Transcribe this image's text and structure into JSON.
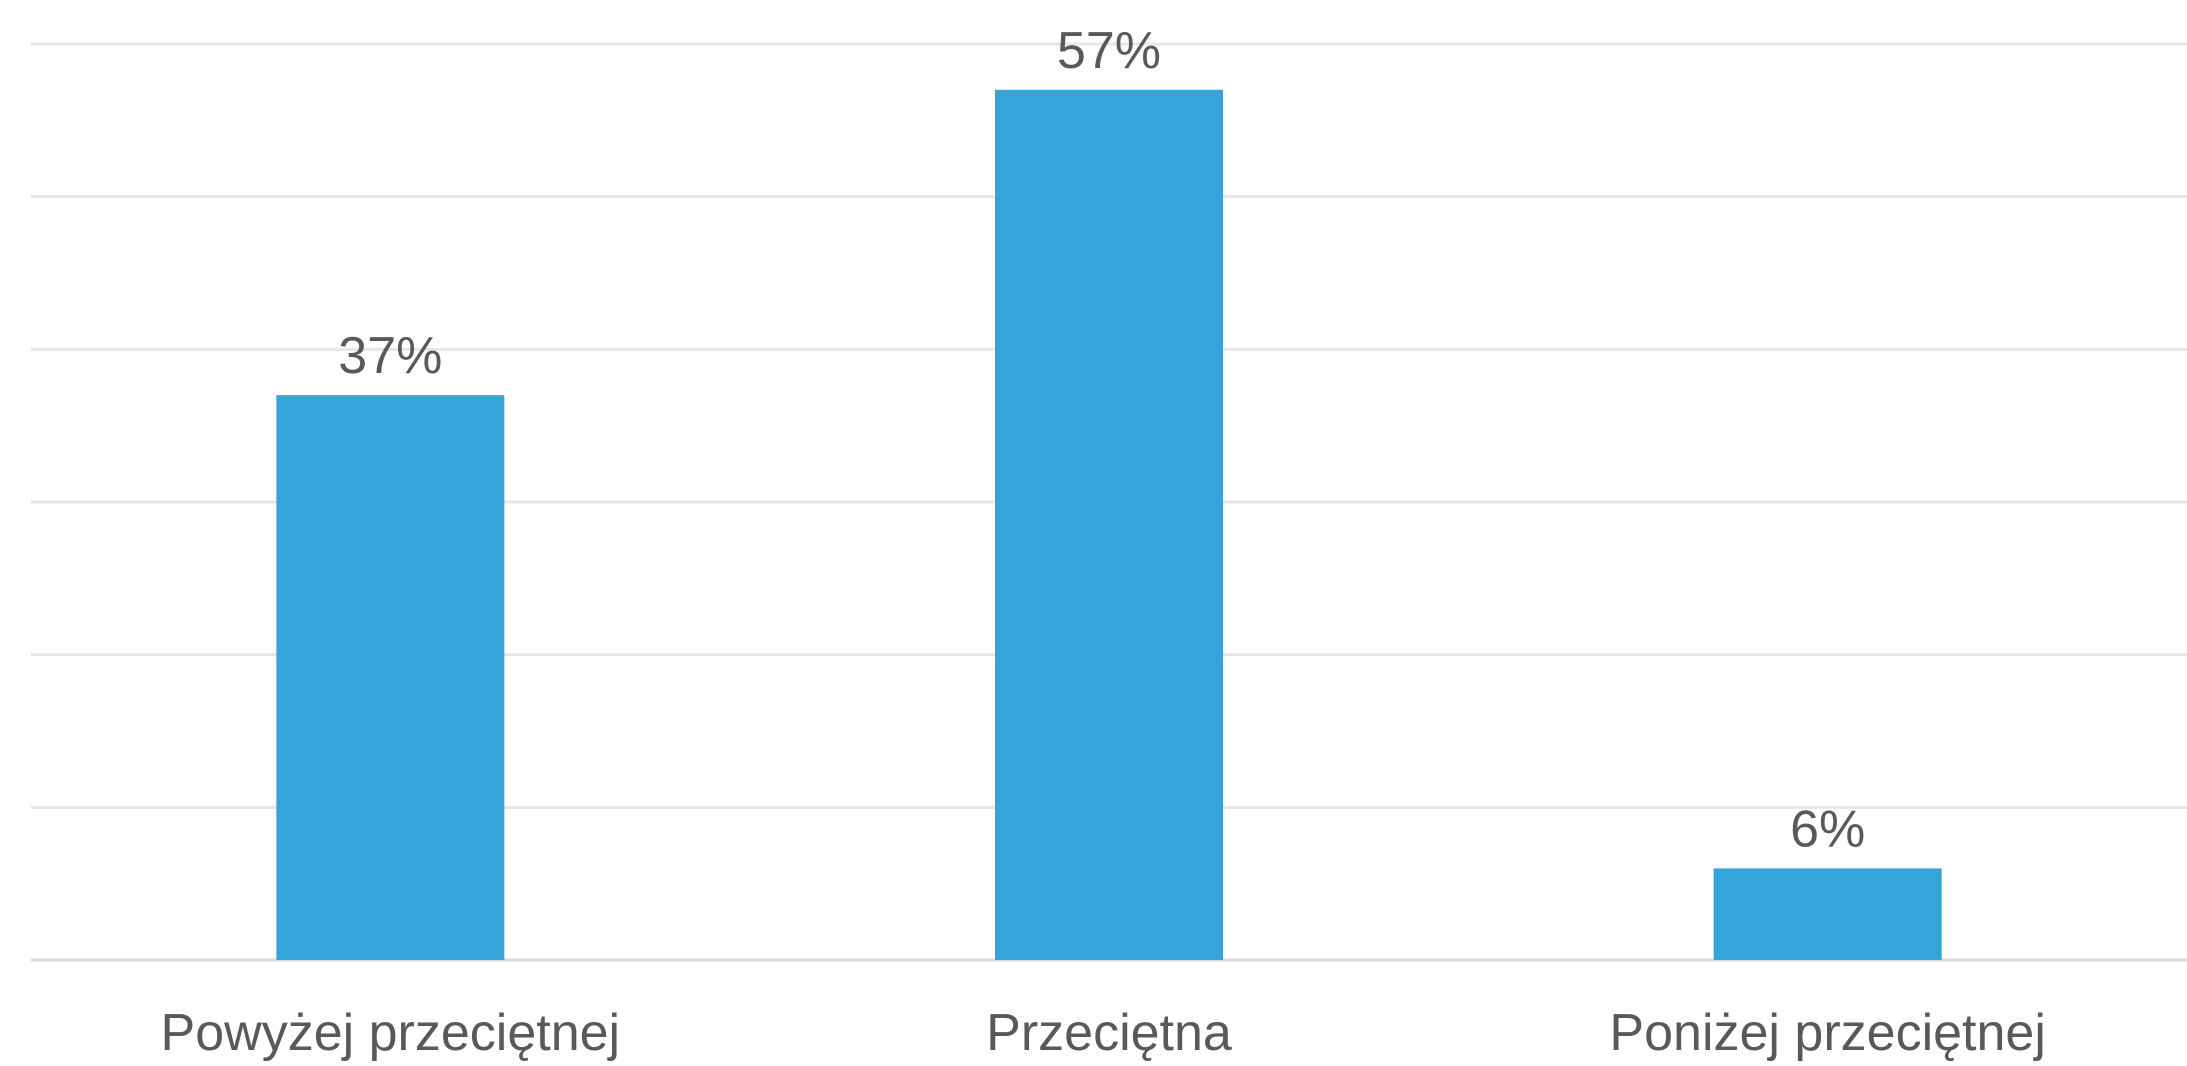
{
  "chart_data": {
    "type": "bar",
    "categories": [
      "Powyżej przeciętnej",
      "Przeciętna",
      "Poniżej przeciętnej"
    ],
    "values": [
      37,
      57,
      6
    ],
    "data_labels": [
      "37%",
      "57%",
      "6%"
    ],
    "title": "",
    "xlabel": "",
    "ylabel": "",
    "ylim": [
      0,
      60
    ],
    "y_gridlines": [
      0,
      10,
      20,
      30,
      40,
      50,
      60
    ],
    "grid": true,
    "legend": "none",
    "colors": {
      "bar": "#34A5DA",
      "text": "#595959",
      "grid": "#e6e6e6"
    }
  }
}
